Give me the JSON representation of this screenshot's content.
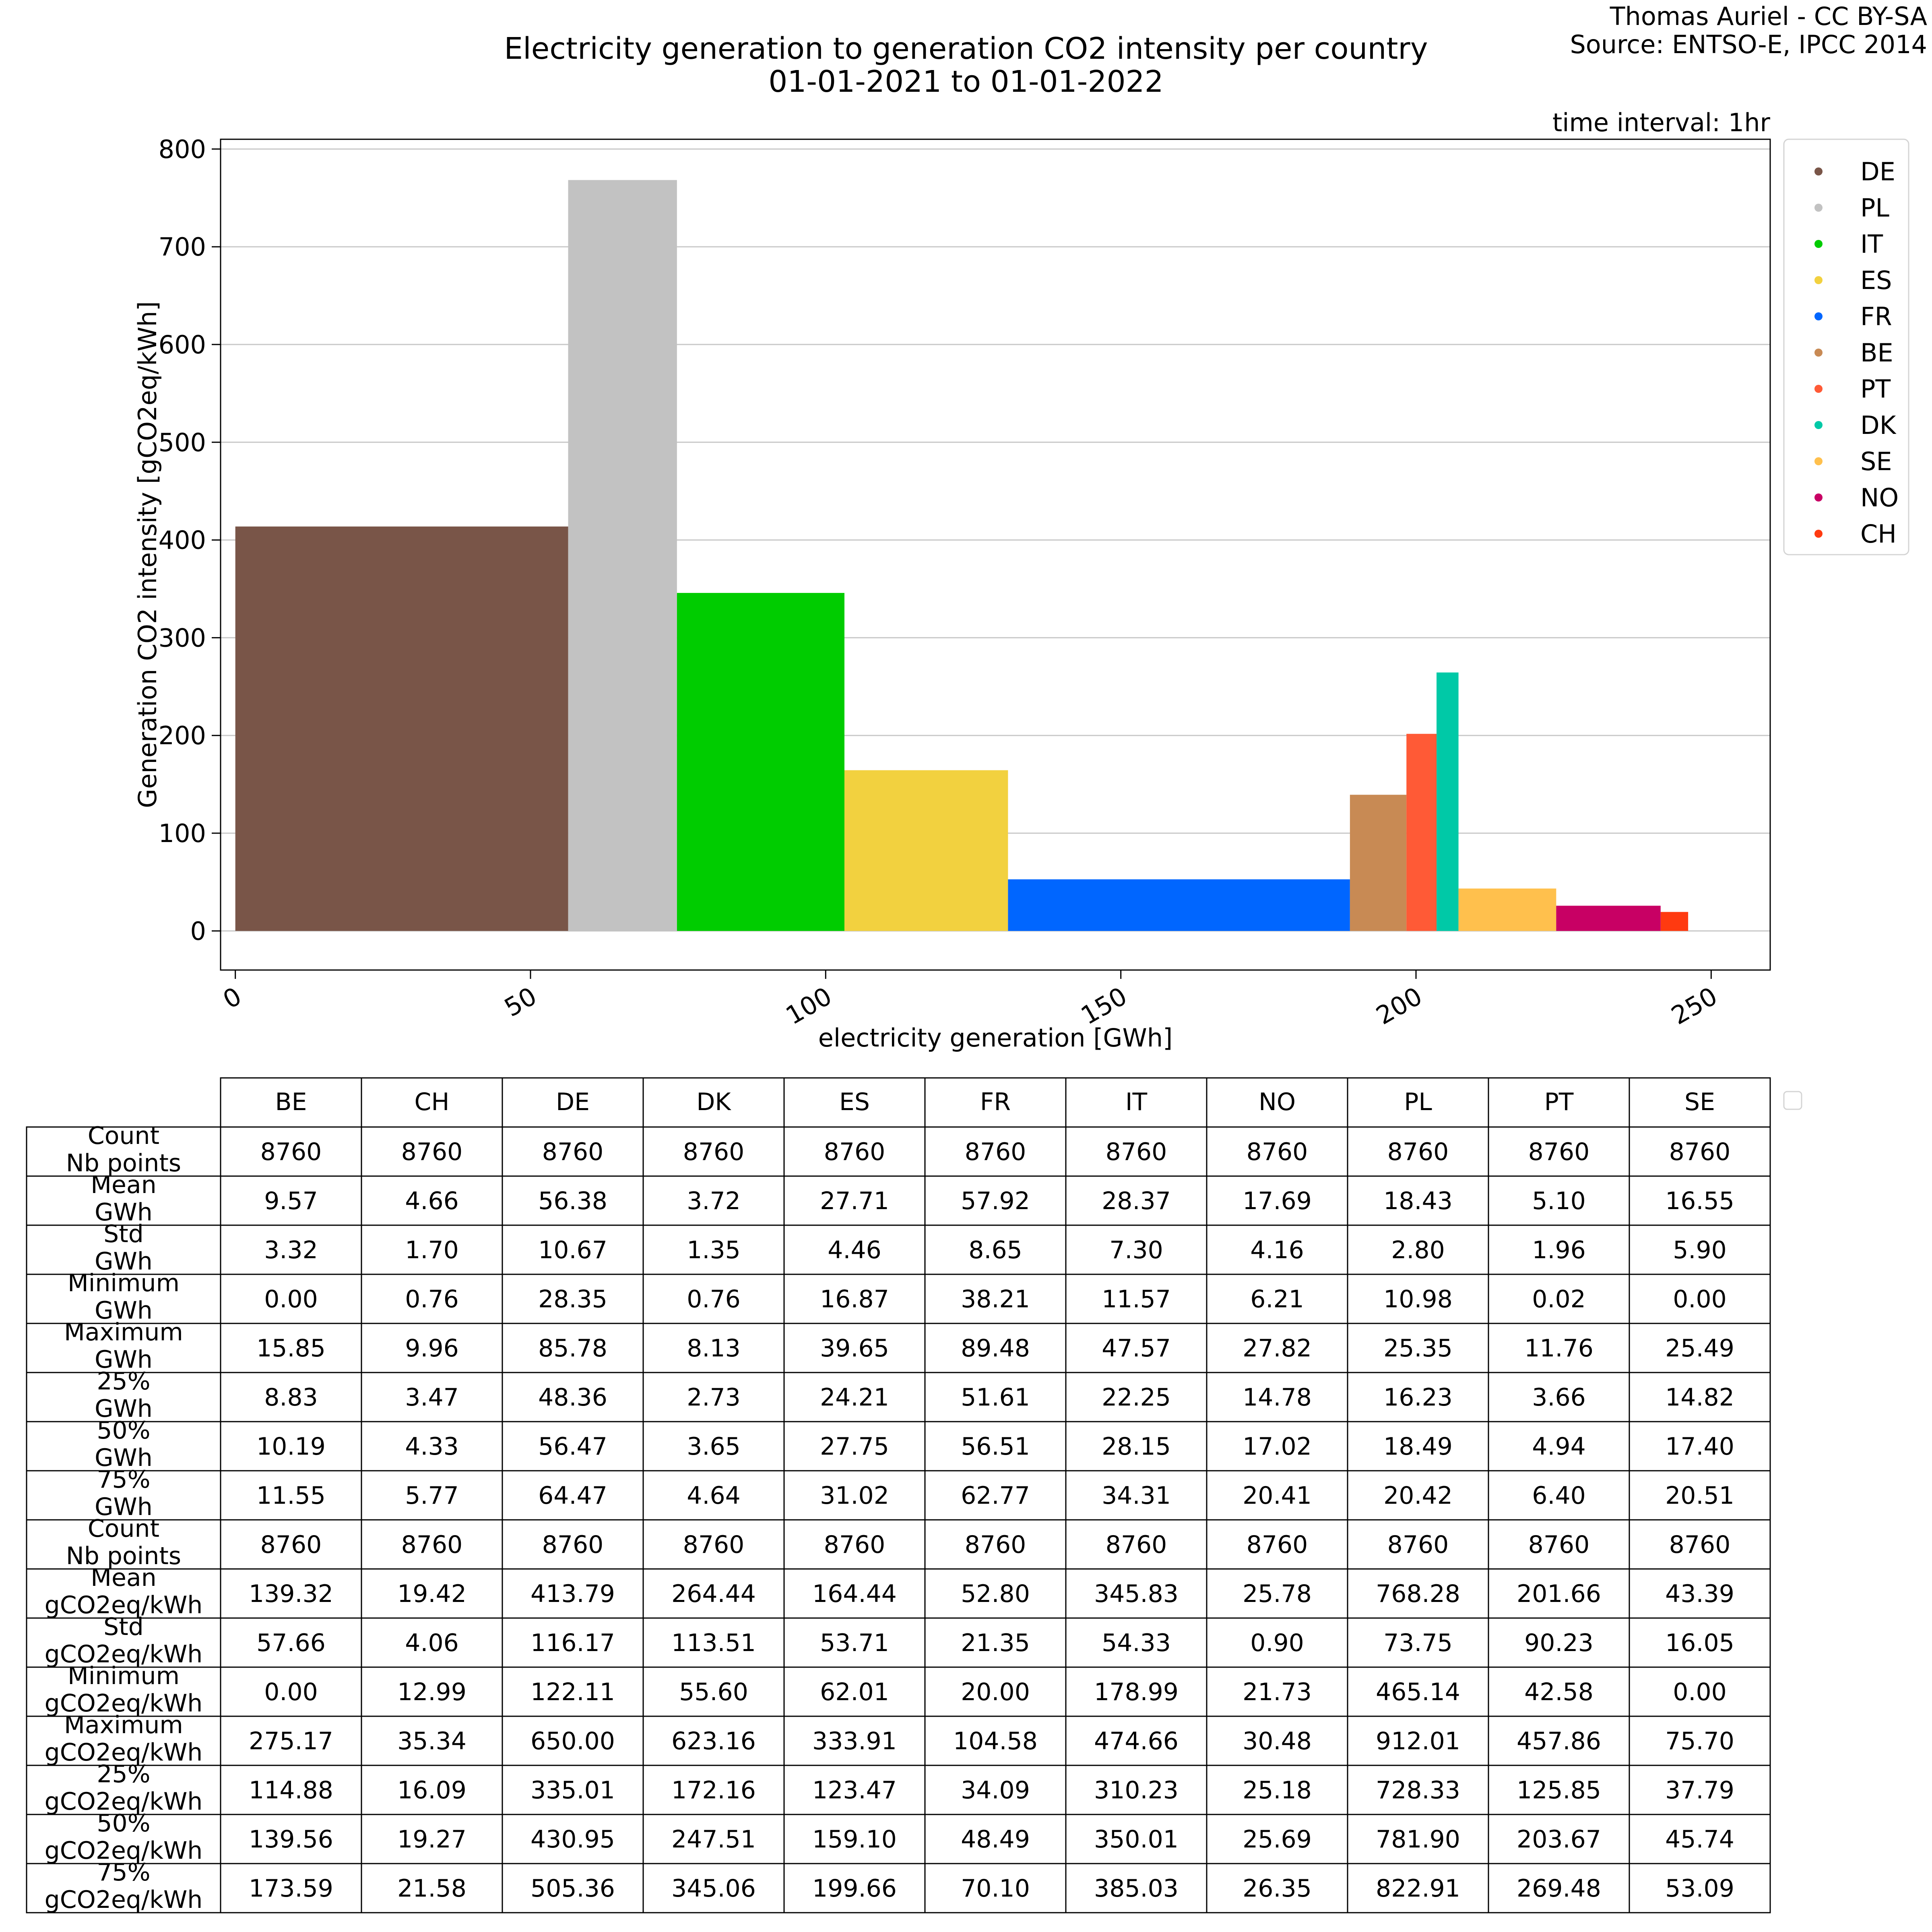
{
  "header": {
    "title_line1": "Electricity generation to generation CO2 intensity per country",
    "title_line2": "01-01-2021 to 01-01-2022",
    "credit_line1": "Thomas Auriel - CC BY-SA",
    "credit_line2": "Source: ENTSO-E, IPCC 2014",
    "interval_note": "time interval: 1hr"
  },
  "chart_data": {
    "type": "bar",
    "subtype": "variable-width bar (cumulative generation on x, bar width = mean generation)",
    "xlabel": "electricity generation [GWh]",
    "ylabel": "Generation CO2 intensity [gCO2eq/kWh]",
    "xlim": [
      -2.5,
      260
    ],
    "ylim": [
      -40,
      810
    ],
    "xticks": [
      0,
      50,
      100,
      150,
      200,
      250
    ],
    "yticks": [
      0,
      100,
      200,
      300,
      400,
      500,
      600,
      700,
      800
    ],
    "grid": "y",
    "legend_position": "outside-right",
    "series": [
      {
        "name": "DE",
        "x_start": 0.0,
        "width": 56.38,
        "value": 413.79,
        "color": "#795548"
      },
      {
        "name": "PL",
        "x_start": 56.38,
        "width": 18.43,
        "value": 768.28,
        "color": "#c2c2c2"
      },
      {
        "name": "IT",
        "x_start": 74.81,
        "width": 28.37,
        "value": 345.83,
        "color": "#00cc00"
      },
      {
        "name": "ES",
        "x_start": 103.18,
        "width": 27.71,
        "value": 164.44,
        "color": "#f2d13f"
      },
      {
        "name": "FR",
        "x_start": 130.89,
        "width": 57.92,
        "value": 52.8,
        "color": "#0066ff"
      },
      {
        "name": "BE",
        "x_start": 188.81,
        "width": 9.57,
        "value": 139.32,
        "color": "#c88a54"
      },
      {
        "name": "PT",
        "x_start": 198.38,
        "width": 5.1,
        "value": 201.66,
        "color": "#ff5a36"
      },
      {
        "name": "DK",
        "x_start": 203.48,
        "width": 3.72,
        "value": 264.44,
        "color": "#00c9a7"
      },
      {
        "name": "SE",
        "x_start": 207.2,
        "width": 16.55,
        "value": 43.39,
        "color": "#ffc04d"
      },
      {
        "name": "NO",
        "x_start": 223.75,
        "width": 17.69,
        "value": 25.78,
        "color": "#c80064"
      },
      {
        "name": "CH",
        "x_start": 241.44,
        "width": 4.66,
        "value": 19.42,
        "color": "#ff3a10"
      }
    ]
  },
  "table": {
    "columns": [
      "BE",
      "CH",
      "DE",
      "DK",
      "ES",
      "FR",
      "IT",
      "NO",
      "PL",
      "PT",
      "SE"
    ],
    "rows": [
      {
        "l1": "Count",
        "l2": "Nb points",
        "values": [
          "8760",
          "8760",
          "8760",
          "8760",
          "8760",
          "8760",
          "8760",
          "8760",
          "8760",
          "8760",
          "8760"
        ]
      },
      {
        "l1": "Mean",
        "l2": "GWh",
        "values": [
          "9.57",
          "4.66",
          "56.38",
          "3.72",
          "27.71",
          "57.92",
          "28.37",
          "17.69",
          "18.43",
          "5.10",
          "16.55"
        ]
      },
      {
        "l1": "Std",
        "l2": "GWh",
        "values": [
          "3.32",
          "1.70",
          "10.67",
          "1.35",
          "4.46",
          "8.65",
          "7.30",
          "4.16",
          "2.80",
          "1.96",
          "5.90"
        ]
      },
      {
        "l1": "Minimum",
        "l2": "GWh",
        "values": [
          "0.00",
          "0.76",
          "28.35",
          "0.76",
          "16.87",
          "38.21",
          "11.57",
          "6.21",
          "10.98",
          "0.02",
          "0.00"
        ]
      },
      {
        "l1": "Maximum",
        "l2": "GWh",
        "values": [
          "15.85",
          "9.96",
          "85.78",
          "8.13",
          "39.65",
          "89.48",
          "47.57",
          "27.82",
          "25.35",
          "11.76",
          "25.49"
        ]
      },
      {
        "l1": "25%",
        "l2": "GWh",
        "values": [
          "8.83",
          "3.47",
          "48.36",
          "2.73",
          "24.21",
          "51.61",
          "22.25",
          "14.78",
          "16.23",
          "3.66",
          "14.82"
        ]
      },
      {
        "l1": "50%",
        "l2": "GWh",
        "values": [
          "10.19",
          "4.33",
          "56.47",
          "3.65",
          "27.75",
          "56.51",
          "28.15",
          "17.02",
          "18.49",
          "4.94",
          "17.40"
        ]
      },
      {
        "l1": "75%",
        "l2": "GWh",
        "values": [
          "11.55",
          "5.77",
          "64.47",
          "4.64",
          "31.02",
          "62.77",
          "34.31",
          "20.41",
          "20.42",
          "6.40",
          "20.51"
        ]
      },
      {
        "l1": "Count",
        "l2": "Nb points",
        "values": [
          "8760",
          "8760",
          "8760",
          "8760",
          "8760",
          "8760",
          "8760",
          "8760",
          "8760",
          "8760",
          "8760"
        ]
      },
      {
        "l1": "Mean",
        "l2": "gCO2eq/kWh",
        "values": [
          "139.32",
          "19.42",
          "413.79",
          "264.44",
          "164.44",
          "52.80",
          "345.83",
          "25.78",
          "768.28",
          "201.66",
          "43.39"
        ]
      },
      {
        "l1": "Std",
        "l2": "gCO2eq/kWh",
        "values": [
          "57.66",
          "4.06",
          "116.17",
          "113.51",
          "53.71",
          "21.35",
          "54.33",
          "0.90",
          "73.75",
          "90.23",
          "16.05"
        ]
      },
      {
        "l1": "Minimum",
        "l2": "gCO2eq/kWh",
        "values": [
          "0.00",
          "12.99",
          "122.11",
          "55.60",
          "62.01",
          "20.00",
          "178.99",
          "21.73",
          "465.14",
          "42.58",
          "0.00"
        ]
      },
      {
        "l1": "Maximum",
        "l2": "gCO2eq/kWh",
        "values": [
          "275.17",
          "35.34",
          "650.00",
          "623.16",
          "333.91",
          "104.58",
          "474.66",
          "30.48",
          "912.01",
          "457.86",
          "75.70"
        ]
      },
      {
        "l1": "25%",
        "l2": "gCO2eq/kWh",
        "values": [
          "114.88",
          "16.09",
          "335.01",
          "172.16",
          "123.47",
          "34.09",
          "310.23",
          "25.18",
          "728.33",
          "125.85",
          "37.79"
        ]
      },
      {
        "l1": "50%",
        "l2": "gCO2eq/kWh",
        "values": [
          "139.56",
          "19.27",
          "430.95",
          "247.51",
          "159.10",
          "48.49",
          "350.01",
          "25.69",
          "781.90",
          "203.67",
          "45.74"
        ]
      },
      {
        "l1": "75%",
        "l2": "gCO2eq/kWh",
        "values": [
          "173.59",
          "21.58",
          "505.36",
          "345.06",
          "199.66",
          "70.10",
          "385.03",
          "26.35",
          "822.91",
          "269.48",
          "53.09"
        ]
      }
    ]
  }
}
